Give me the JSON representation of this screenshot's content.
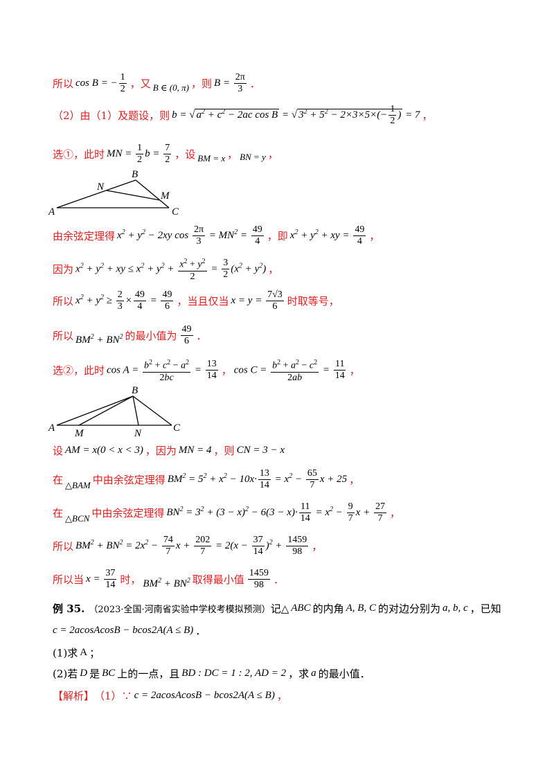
{
  "lines": [
    {
      "pre": "所以",
      "mid": "，又",
      "post": "，则",
      "end": "．"
    },
    {
      "pre": "（2）由（1）及题设，则",
      "end": "，"
    },
    {
      "pre": "选①，此时",
      "mid": "，设",
      "end": "，"
    },
    {
      "pre": "由余弦定理得",
      "mid": "，即",
      "end": "，"
    },
    {
      "pre": "因为",
      "end": "，"
    },
    {
      "pre": "所以",
      "mid": "，当且仅当",
      "end": "时取等号，"
    },
    {
      "pre": "所以",
      "mid": "的最小值为",
      "end": "．"
    },
    {
      "pre": "选②，此时",
      "end": "，"
    },
    {
      "pre": "设",
      "mid": "，因为",
      "post": "，则"
    },
    {
      "pre": "在",
      "mid": "中由余弦定理得",
      "end": "，"
    },
    {
      "pre": "在",
      "mid": "中由余弦定理得",
      "end": "，"
    },
    {
      "pre": "所以",
      "end": "，"
    },
    {
      "pre": "所以当",
      "mid": "时，",
      "post": "取得最小值",
      "end": "．"
    }
  ],
  "example": {
    "label": "例 35.",
    "source": "（2023·全国·河南省实验中学校考模拟预测）",
    "text1": "记△",
    "text2": "的内角",
    "text3": "的对边分别为",
    "text4": "，已知",
    "q1": "(1)求",
    "q1end": "；",
    "q2a": "(2)若",
    "q2b": "是",
    "q2c": "上的一点，且",
    "q2d": "，求",
    "q2e": "的最小值．",
    "sol": "【解析】",
    "sol1": "（1）∵"
  },
  "figure1": {
    "labels": {
      "A": "A",
      "B": "B",
      "C": "C",
      "N": "N",
      "M": "M"
    }
  },
  "figure2": {
    "labels": {
      "A": "A",
      "B": "B",
      "C": "C",
      "N": "N",
      "M": "M"
    }
  }
}
